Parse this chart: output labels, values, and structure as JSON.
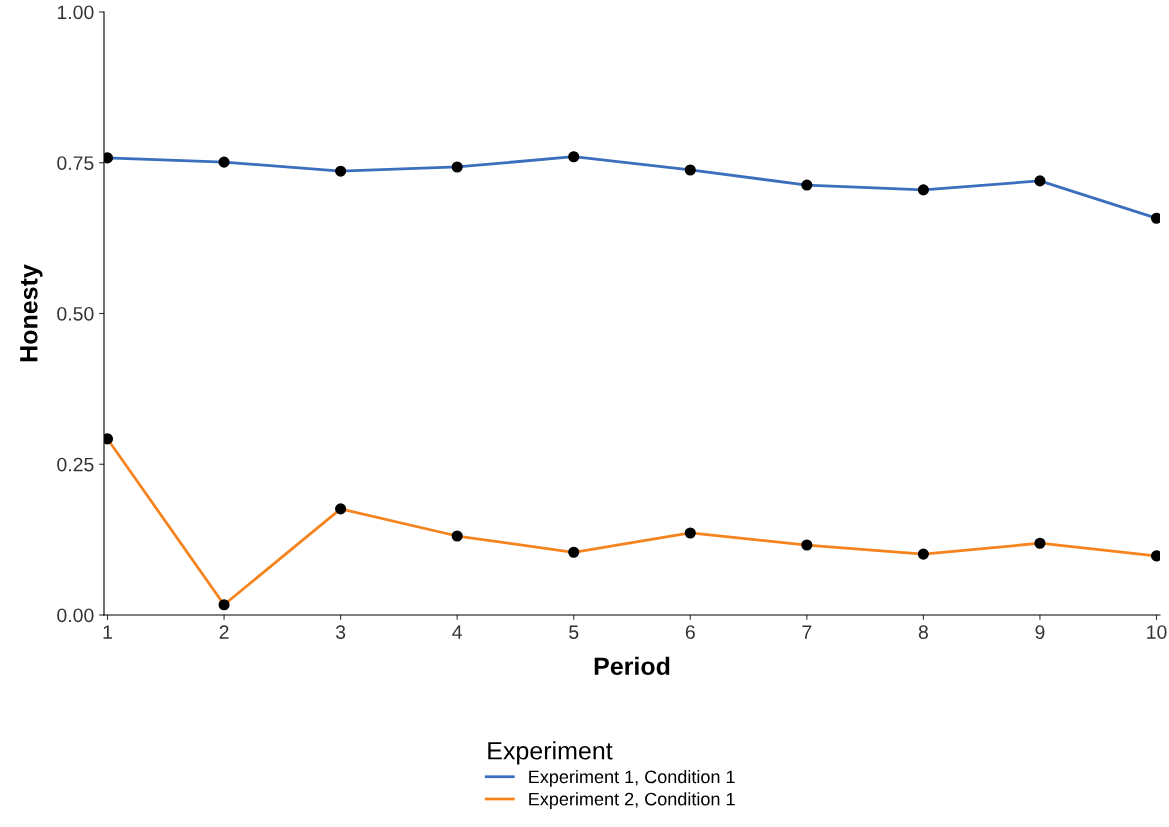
{
  "chart_data": {
    "type": "line",
    "xlabel": "Period",
    "ylabel": "Honesty",
    "legend_title": "Experiment",
    "x": [
      1,
      2,
      3,
      4,
      5,
      6,
      7,
      8,
      9,
      10
    ],
    "series": [
      {
        "name": "Experiment 1, Condition 1",
        "color": "#3b6fbe",
        "values": [
          0.758,
          0.751,
          0.736,
          0.743,
          0.76,
          0.738,
          0.713,
          0.705,
          0.72,
          0.658
        ]
      },
      {
        "name": "Experiment 2, Condition 1",
        "color": "#f5841f",
        "values": [
          0.292,
          0.017,
          0.176,
          0.131,
          0.104,
          0.136,
          0.116,
          0.101,
          0.119,
          0.098
        ]
      }
    ],
    "xlim": [
      0.97,
      10.03
    ],
    "xticks": [
      1,
      2,
      3,
      4,
      5,
      6,
      7,
      8,
      9,
      10
    ],
    "ylim": [
      0,
      1
    ],
    "yticks": [
      {
        "value": 0,
        "label": "0.00"
      },
      {
        "value": 0.25,
        "label": "0.25"
      },
      {
        "value": 0.5,
        "label": "0.50"
      },
      {
        "value": 0.75,
        "label": "0.75"
      },
      {
        "value": 1,
        "label": "1.00"
      }
    ],
    "grid": false,
    "legend": "bottom",
    "marker": "circle",
    "line_style": "solid"
  }
}
